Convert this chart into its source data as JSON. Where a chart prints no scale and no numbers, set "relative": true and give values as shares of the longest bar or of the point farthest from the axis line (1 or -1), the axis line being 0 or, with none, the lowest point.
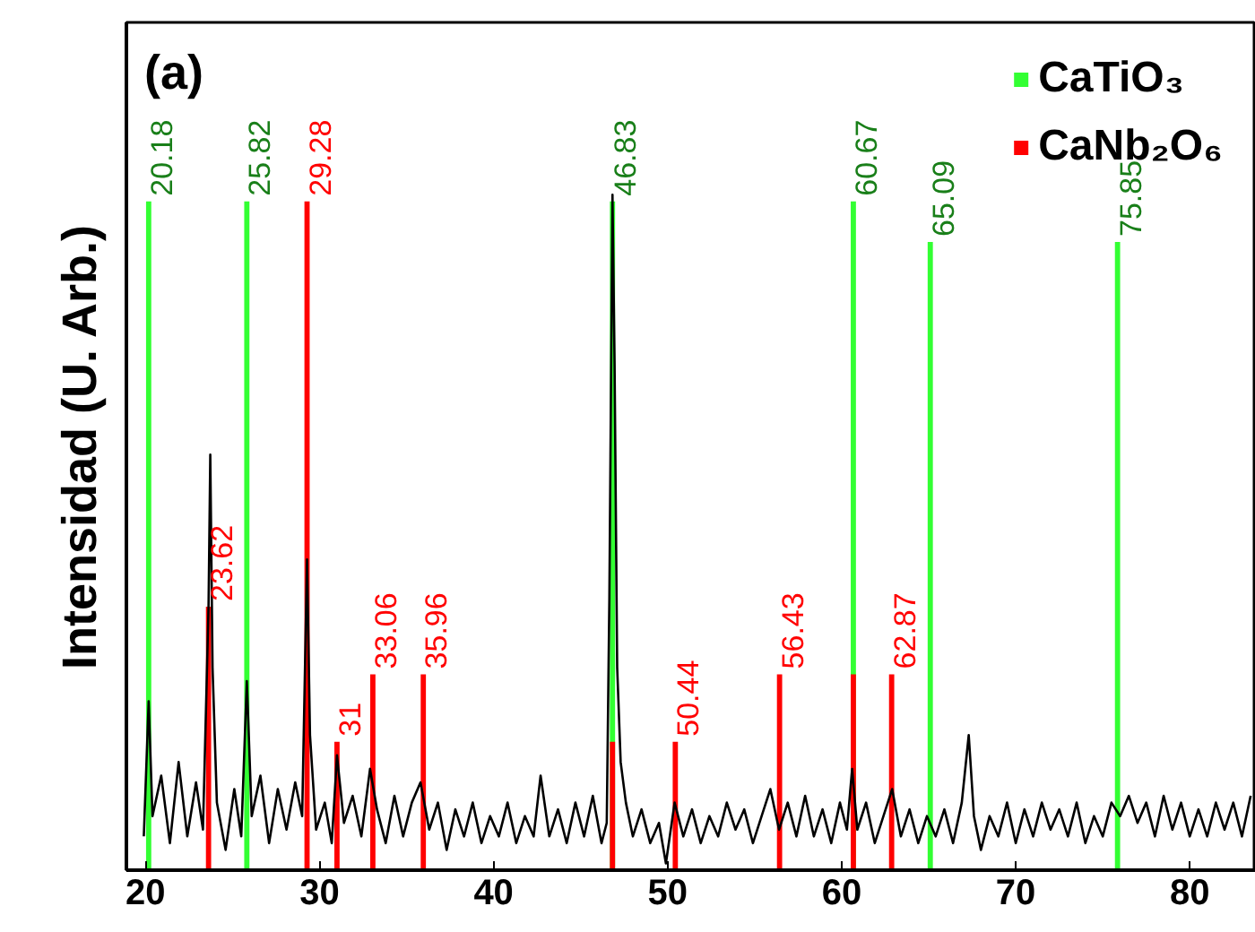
{
  "chart_data": {
    "type": "line",
    "ylabel": "Intensidad (U. Arb.)",
    "annotations": [
      "(a)",
      {
        "text": "20.18",
        "x": 20.18,
        "y": 0.99
      },
      {
        "text": "25.82",
        "x": 25.82,
        "y": 0.99
      },
      {
        "text": "46.83",
        "x": 46.83,
        "y": 0.99
      },
      {
        "text": "60.67",
        "x": 60.67,
        "y": 0.99
      },
      {
        "text": "65.09",
        "x": 65.09,
        "y": 0.93
      },
      {
        "text": "75.85",
        "x": 75.85,
        "y": 0.93
      },
      {
        "text": "23.62",
        "x": 23.62,
        "y": 0.39
      },
      {
        "text": "29.28",
        "x": 29.28,
        "y": 0.99
      },
      {
        "text": "31",
        "x": 31,
        "y": 0.19
      },
      {
        "text": "33.06",
        "x": 33.06,
        "y": 0.29
      },
      {
        "text": "35.96",
        "x": 35.96,
        "y": 0.29
      },
      {
        "text": "50.44",
        "x": 50.44,
        "y": 0.19
      },
      {
        "text": "56.43",
        "x": 56.43,
        "y": 0.29
      },
      {
        "text": "62.87",
        "x": 62.87,
        "y": 0.29
      }
    ],
    "relative": true,
    "xlim": [
      18.9,
      83.8
    ],
    "xticks": [
      20,
      30,
      40,
      50,
      60,
      70,
      80
    ],
    "grid": false,
    "legend": "top right",
    "series": [
      {
        "type": "bar",
        "name": "CaTiO₃",
        "color": "#33ff33",
        "x": [
          20.18,
          25.82,
          46.83,
          60.67,
          65.09,
          75.85
        ],
        "values": [
          0.99,
          0.99,
          0.99,
          0.99,
          0.93,
          0.93
        ]
      },
      {
        "type": "bar",
        "name": "CaNb₂O₆",
        "color": "#ff0000",
        "x": [
          23.62,
          29.28,
          31,
          33.06,
          35.96,
          46.83,
          50.44,
          56.43,
          60.67,
          62.87
        ],
        "values": [
          0.39,
          0.99,
          0.19,
          0.29,
          0.29,
          0.19,
          0.19,
          0.29,
          0.29,
          0.29
        ]
      },
      {
        "color": "#000000",
        "x": [
          19.9,
          20.18,
          20.4,
          20.9,
          21.4,
          21.9,
          22.4,
          22.9,
          23.3,
          23.62,
          23.72,
          23.85,
          24.1,
          24.6,
          25.1,
          25.5,
          25.82,
          26.1,
          26.6,
          27.1,
          27.6,
          28.1,
          28.6,
          29.0,
          29.28,
          29.45,
          29.8,
          30.3,
          30.7,
          31.0,
          31.4,
          31.9,
          32.4,
          32.9,
          33.3,
          33.8,
          34.3,
          34.8,
          35.3,
          35.8,
          36.3,
          36.8,
          37.3,
          37.8,
          38.3,
          38.8,
          39.3,
          39.8,
          40.3,
          40.8,
          41.3,
          41.8,
          42.3,
          42.7,
          43.2,
          43.7,
          44.2,
          44.7,
          45.2,
          45.7,
          46.2,
          46.5,
          46.65,
          46.83,
          46.95,
          47.1,
          47.3,
          47.6,
          48.0,
          48.5,
          49.0,
          49.5,
          49.9,
          50.4,
          50.9,
          51.4,
          51.9,
          52.4,
          52.9,
          53.4,
          53.9,
          54.4,
          54.9,
          55.4,
          55.9,
          56.4,
          56.9,
          57.4,
          57.9,
          58.4,
          58.9,
          59.4,
          59.9,
          60.3,
          60.6,
          60.9,
          61.4,
          61.9,
          62.4,
          62.9,
          63.4,
          63.9,
          64.4,
          64.9,
          65.4,
          65.9,
          66.4,
          66.9,
          67.3,
          67.6,
          68.0,
          68.5,
          69.0,
          69.5,
          70.0,
          70.5,
          71.0,
          71.5,
          72.0,
          72.5,
          73.0,
          73.5,
          74.0,
          74.5,
          75.0,
          75.5,
          76.0,
          76.5,
          77.0,
          77.5,
          78.0,
          78.5,
          79.0,
          79.5,
          80.0,
          80.5,
          81.0,
          81.5,
          82.0,
          82.5,
          83.0,
          83.5
        ],
        "values": [
          0.05,
          0.25,
          0.08,
          0.14,
          0.04,
          0.16,
          0.05,
          0.13,
          0.06,
          0.39,
          0.615,
          0.3,
          0.1,
          0.03,
          0.12,
          0.05,
          0.28,
          0.08,
          0.14,
          0.04,
          0.12,
          0.06,
          0.13,
          0.08,
          0.46,
          0.2,
          0.06,
          0.1,
          0.04,
          0.17,
          0.07,
          0.11,
          0.05,
          0.15,
          0.09,
          0.04,
          0.11,
          0.05,
          0.1,
          0.13,
          0.06,
          0.1,
          0.03,
          0.09,
          0.05,
          0.1,
          0.04,
          0.08,
          0.05,
          0.1,
          0.04,
          0.08,
          0.05,
          0.14,
          0.05,
          0.09,
          0.04,
          0.1,
          0.05,
          0.11,
          0.04,
          0.07,
          0.4,
          1.0,
          0.75,
          0.3,
          0.16,
          0.1,
          0.05,
          0.09,
          0.04,
          0.07,
          0.01,
          0.1,
          0.05,
          0.09,
          0.04,
          0.08,
          0.05,
          0.1,
          0.06,
          0.09,
          0.04,
          0.08,
          0.12,
          0.06,
          0.1,
          0.05,
          0.11,
          0.05,
          0.09,
          0.04,
          0.1,
          0.06,
          0.15,
          0.06,
          0.1,
          0.04,
          0.08,
          0.12,
          0.05,
          0.09,
          0.04,
          0.08,
          0.05,
          0.09,
          0.04,
          0.1,
          0.2,
          0.08,
          0.03,
          0.08,
          0.05,
          0.1,
          0.04,
          0.09,
          0.05,
          0.1,
          0.06,
          0.09,
          0.05,
          0.1,
          0.04,
          0.08,
          0.05,
          0.1,
          0.08,
          0.11,
          0.07,
          0.1,
          0.05,
          0.11,
          0.06,
          0.1,
          0.05,
          0.09,
          0.05,
          0.1,
          0.06,
          0.1,
          0.05,
          0.11
        ]
      }
    ]
  }
}
